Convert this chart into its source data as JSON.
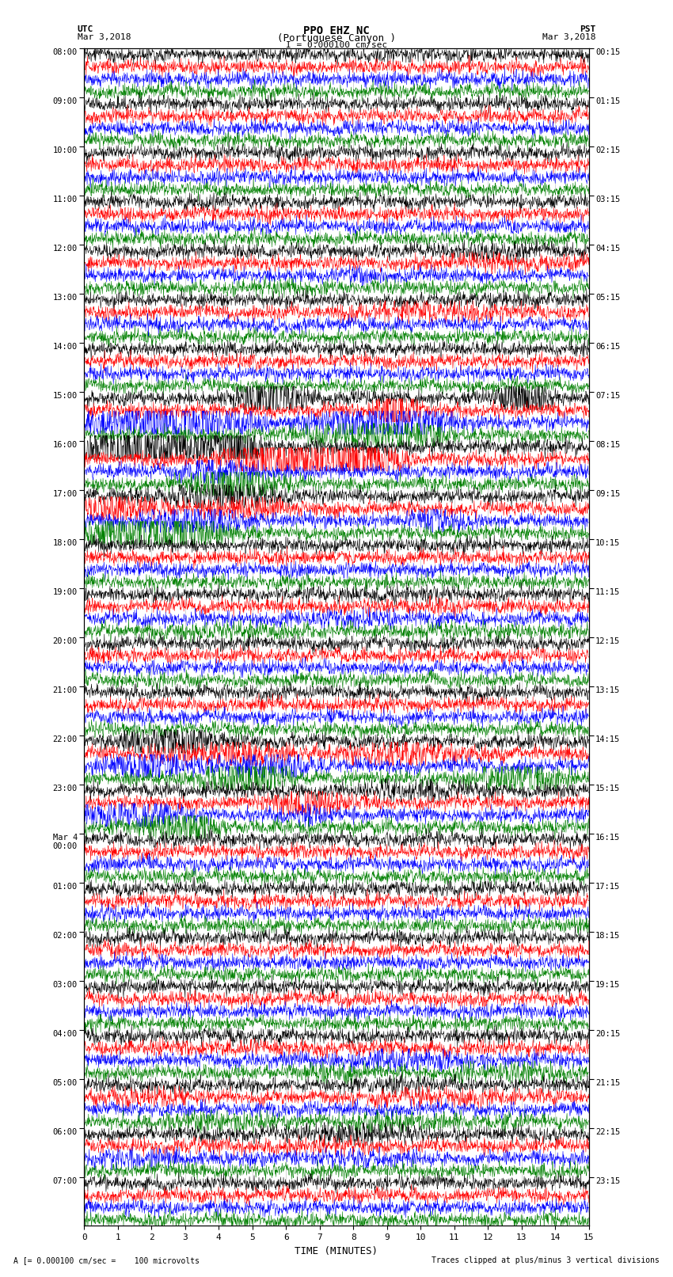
{
  "title_line1": "PPO EHZ NC",
  "title_line2": "(Portuguese Canyon )",
  "title_line3": "I = 0.000100 cm/sec",
  "left_header_line1": "UTC",
  "left_header_line2": "Mar 3,2018",
  "right_header_line1": "PST",
  "right_header_line2": "Mar 3,2018",
  "xlabel": "TIME (MINUTES)",
  "footer_left": "A [= 0.000100 cm/sec =    100 microvolts",
  "footer_right": "Traces clipped at plus/minus 3 vertical divisions",
  "xmin": 0,
  "xmax": 15,
  "xticks": [
    0,
    1,
    2,
    3,
    4,
    5,
    6,
    7,
    8,
    9,
    10,
    11,
    12,
    13,
    14,
    15
  ],
  "background_color": "#ffffff",
  "trace_colors": [
    "black",
    "red",
    "blue",
    "green"
  ],
  "utc_labels": [
    "08:00",
    "09:00",
    "10:00",
    "11:00",
    "12:00",
    "13:00",
    "14:00",
    "15:00",
    "16:00",
    "17:00",
    "18:00",
    "19:00",
    "20:00",
    "21:00",
    "22:00",
    "23:00",
    "Mar 4\n00:00",
    "01:00",
    "02:00",
    "03:00",
    "04:00",
    "05:00",
    "06:00",
    "07:00"
  ],
  "pst_labels": [
    "00:15",
    "01:15",
    "02:15",
    "03:15",
    "04:15",
    "05:15",
    "06:15",
    "07:15",
    "08:15",
    "09:15",
    "10:15",
    "11:15",
    "12:15",
    "13:15",
    "14:15",
    "15:15",
    "16:15",
    "17:15",
    "18:15",
    "19:15",
    "20:15",
    "21:15",
    "22:15",
    "23:15"
  ],
  "n_hours": 24,
  "n_traces_per_hour": 4,
  "seed": 42,
  "noise_base": 0.28,
  "event_hours_big": [
    7,
    8,
    9
  ],
  "event_hours_medium": [
    14,
    15
  ],
  "event_hours_small": [
    4,
    5,
    11,
    20,
    21,
    22
  ]
}
